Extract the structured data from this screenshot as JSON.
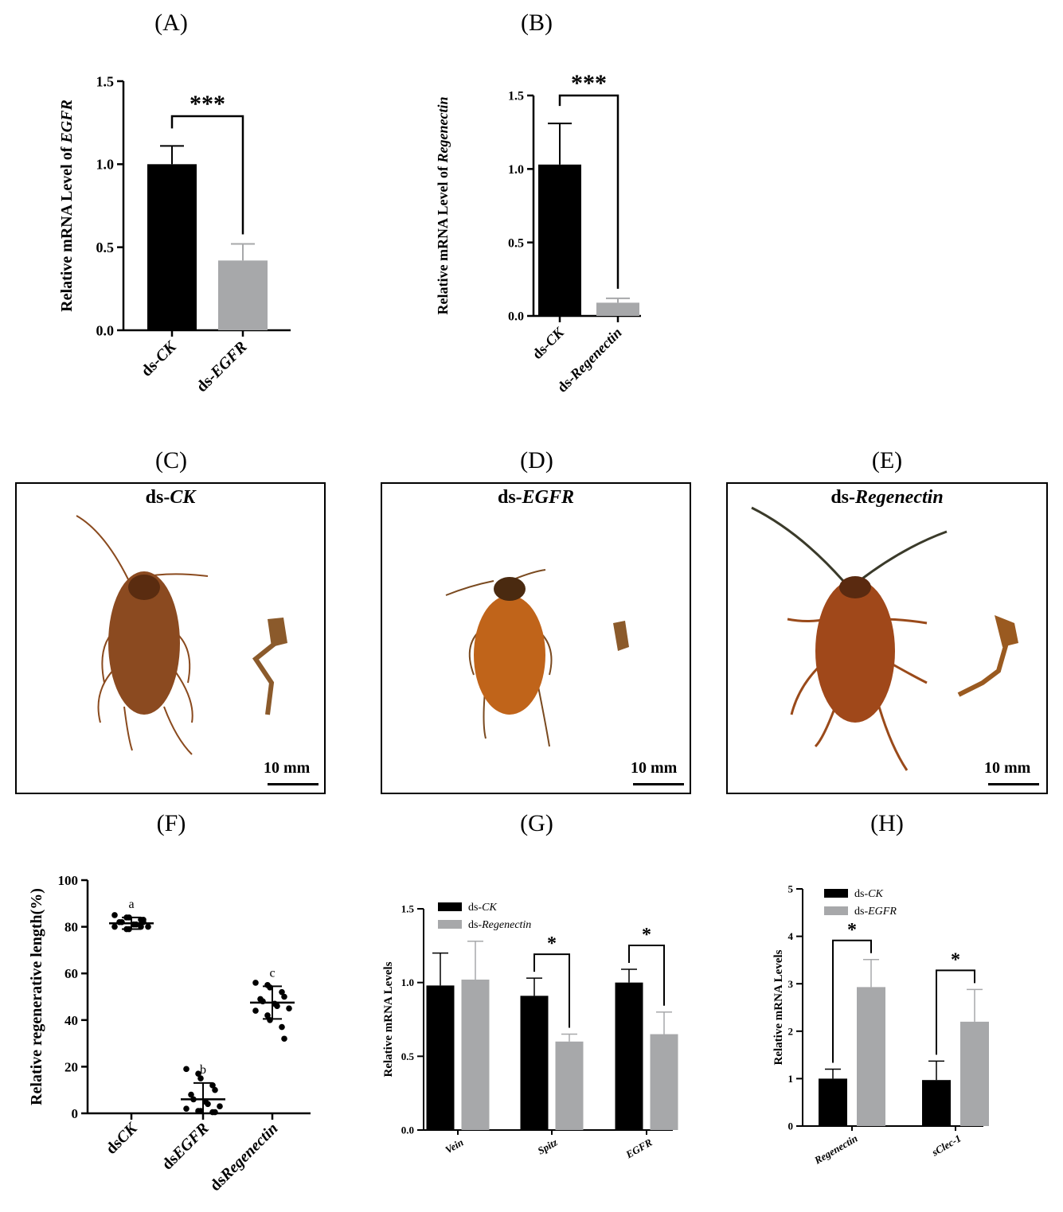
{
  "panel_labels": {
    "A": "(A)",
    "B": "(B)",
    "C": "(C)",
    "D": "(D)",
    "E": "(E)",
    "F": "(F)",
    "G": "(G)",
    "H": "(H)"
  },
  "photos": {
    "C": {
      "title_prefix": "ds-",
      "title_gene": "CK",
      "scale": "10 mm"
    },
    "D": {
      "title_prefix": "ds-",
      "title_gene": "EGFR",
      "scale": "10 mm"
    },
    "E": {
      "title_prefix": "ds-",
      "title_gene": "Regenectin",
      "scale": "10 mm"
    }
  },
  "colors": {
    "dark": "#000000",
    "light": "#a7a8aa"
  },
  "chart_data": [
    {
      "id": "A",
      "type": "bar",
      "categories": [
        "ds-CK",
        "ds-EGFR"
      ],
      "category_parts": [
        [
          "ds-",
          "CK"
        ],
        [
          "ds-",
          "EGFR"
        ]
      ],
      "values": [
        1.0,
        0.42
      ],
      "errors": [
        0.11,
        0.1
      ],
      "ylabel_prefix": "Relative mRNA Level of ",
      "ylabel_gene": "EGFR",
      "ylim": [
        0,
        1.5
      ],
      "yticks": [
        "0.0",
        "0.5",
        "1.0",
        "1.5"
      ],
      "significance": [
        {
          "from": 0,
          "to": 1,
          "label": "***"
        }
      ]
    },
    {
      "id": "B",
      "type": "bar",
      "categories": [
        "ds-CK",
        "ds-Regenectin"
      ],
      "category_parts": [
        [
          "ds-",
          "CK"
        ],
        [
          "ds-",
          "Regenectin"
        ]
      ],
      "values": [
        1.03,
        0.09
      ],
      "errors": [
        0.28,
        0.03
      ],
      "ylabel_prefix": "Relative mRNA Level of ",
      "ylabel_gene": "Regenectin",
      "ylim": [
        0,
        1.5
      ],
      "yticks": [
        "0.0",
        "0.5",
        "1.0",
        "1.5"
      ],
      "significance": [
        {
          "from": 0,
          "to": 1,
          "label": "***"
        }
      ]
    },
    {
      "id": "F",
      "type": "scatter",
      "categories": [
        "dsCK",
        "dsEGFR",
        "dsRegenectin"
      ],
      "category_parts": [
        [
          "ds",
          "CK"
        ],
        [
          "ds",
          "EGFR"
        ],
        [
          "ds",
          "Regenectin"
        ]
      ],
      "ylabel": "Relative regenerative length(%)",
      "ylim": [
        0,
        100
      ],
      "yticks": [
        "0",
        "20",
        "40",
        "60",
        "80",
        "100"
      ],
      "groups": [
        {
          "letter": "a",
          "mean": 81.5,
          "sd": 2.5,
          "points": [
            85,
            84,
            84,
            83,
            83,
            82,
            82,
            81,
            81,
            80,
            80,
            79,
            79,
            80,
            82
          ]
        },
        {
          "letter": "b",
          "mean": 6,
          "sd": 7,
          "points": [
            19,
            17,
            15,
            12,
            10,
            8,
            6,
            5,
            4,
            3,
            2,
            1,
            1,
            0.5,
            0.5
          ]
        },
        {
          "letter": "c",
          "mean": 47.5,
          "sd": 7,
          "points": [
            56,
            55,
            54,
            52,
            50,
            49,
            48,
            47,
            46,
            45,
            44,
            42,
            40,
            37,
            32
          ]
        }
      ]
    },
    {
      "id": "G",
      "type": "bar",
      "categories": [
        "Vein",
        "Spitz",
        "EGFR"
      ],
      "series": [
        {
          "name_prefix": "ds-",
          "name_gene": "CK",
          "values": [
            0.98,
            0.91,
            1.0
          ],
          "errors": [
            0.22,
            0.12,
            0.09
          ]
        },
        {
          "name_prefix": "ds-",
          "name_gene": "Regenectin",
          "values": [
            1.02,
            0.6,
            0.65
          ],
          "errors": [
            0.26,
            0.05,
            0.15
          ]
        }
      ],
      "ylabel": "Relative mRNA Levels",
      "ylim": [
        0,
        1.5
      ],
      "yticks": [
        "0.0",
        "0.5",
        "1.0",
        "1.5"
      ],
      "significance": [
        {
          "category": 1,
          "label": "*"
        },
        {
          "category": 2,
          "label": "*"
        }
      ]
    },
    {
      "id": "H",
      "type": "bar",
      "categories": [
        "Regenectin",
        "sClec-1"
      ],
      "series": [
        {
          "name_prefix": "ds-",
          "name_gene": "CK",
          "values": [
            1.0,
            0.97
          ],
          "errors": [
            0.2,
            0.4
          ]
        },
        {
          "name_prefix": "ds-",
          "name_gene": "EGFR",
          "values": [
            2.93,
            2.2
          ],
          "errors": [
            0.58,
            0.68
          ]
        }
      ],
      "ylabel": "Relative mRNA Levels",
      "ylim": [
        0,
        5
      ],
      "yticks": [
        "0",
        "1",
        "2",
        "3",
        "4",
        "5"
      ],
      "significance": [
        {
          "category": 0,
          "label": "*"
        },
        {
          "category": 1,
          "label": "*"
        }
      ]
    }
  ]
}
